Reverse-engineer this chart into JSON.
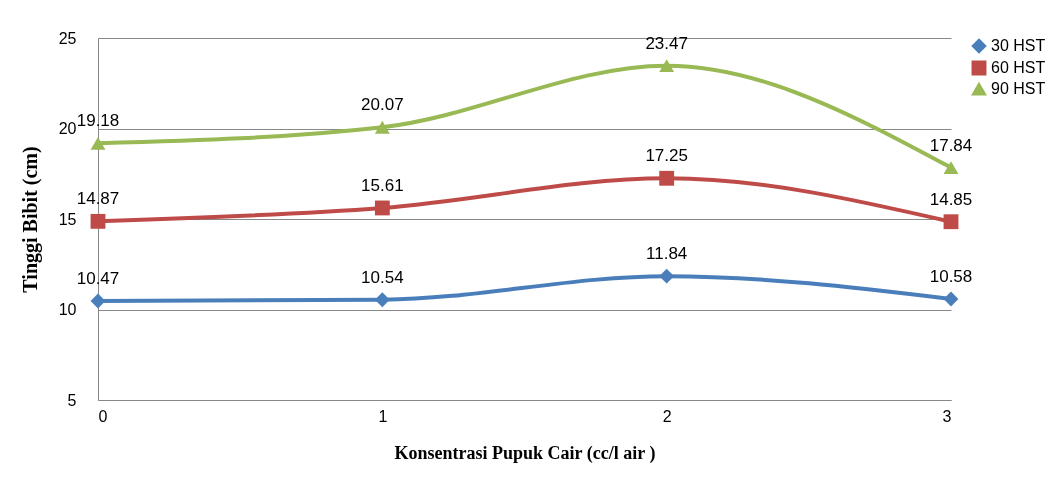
{
  "chart_data": {
    "type": "line",
    "xlabel": "Konsentrasi Pupuk Cair (cc/l air )",
    "ylabel": "Tinggi Bibit  (cm)",
    "x": [
      0,
      1,
      2,
      3
    ],
    "xlim": [
      0,
      3
    ],
    "xticks": [
      0,
      1,
      2,
      3
    ],
    "ylim": [
      5,
      25
    ],
    "yticks": [
      5,
      10,
      15,
      20,
      25
    ],
    "grid": "y",
    "legend": "right",
    "data_labels": true,
    "series": [
      {
        "name": "30 HST",
        "color": "#4a7ebb",
        "marker": "diamond",
        "values": [
          10.47,
          10.54,
          11.84,
          10.58
        ]
      },
      {
        "name": "60 HST",
        "color": "#be4b48",
        "marker": "square",
        "values": [
          14.87,
          15.61,
          17.25,
          14.85
        ]
      },
      {
        "name": "90 HST",
        "color": "#98b954",
        "marker": "triangle",
        "values": [
          19.18,
          20.07,
          23.47,
          17.84
        ]
      }
    ]
  }
}
